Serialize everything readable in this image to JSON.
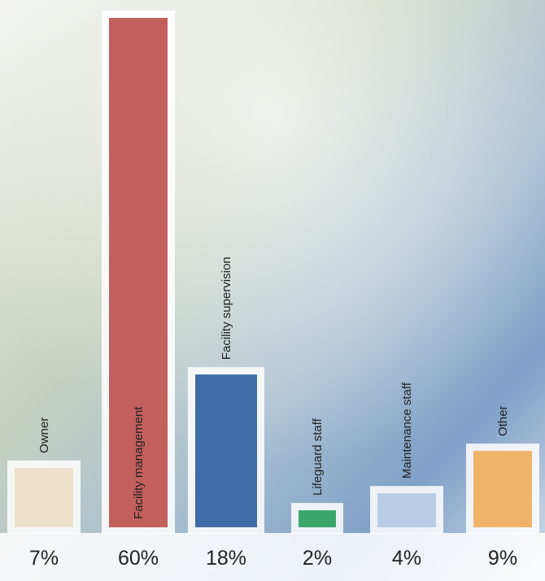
{
  "chart_data": {
    "type": "bar",
    "categories": [
      "Owner",
      "Facility management",
      "Facility supervision",
      "Lifeguard staff",
      "Maintenance staff",
      "Other"
    ],
    "values": [
      7,
      60,
      18,
      2,
      4,
      9
    ],
    "value_labels": [
      "7%",
      "60%",
      "18%",
      "2%",
      "4%",
      "9%"
    ],
    "colors": [
      "#ece2cb",
      "#c2605e",
      "#3f6ca6",
      "#3aa66a",
      "#b8cde3",
      "#efb46a"
    ],
    "ylim": [
      0,
      60
    ]
  }
}
